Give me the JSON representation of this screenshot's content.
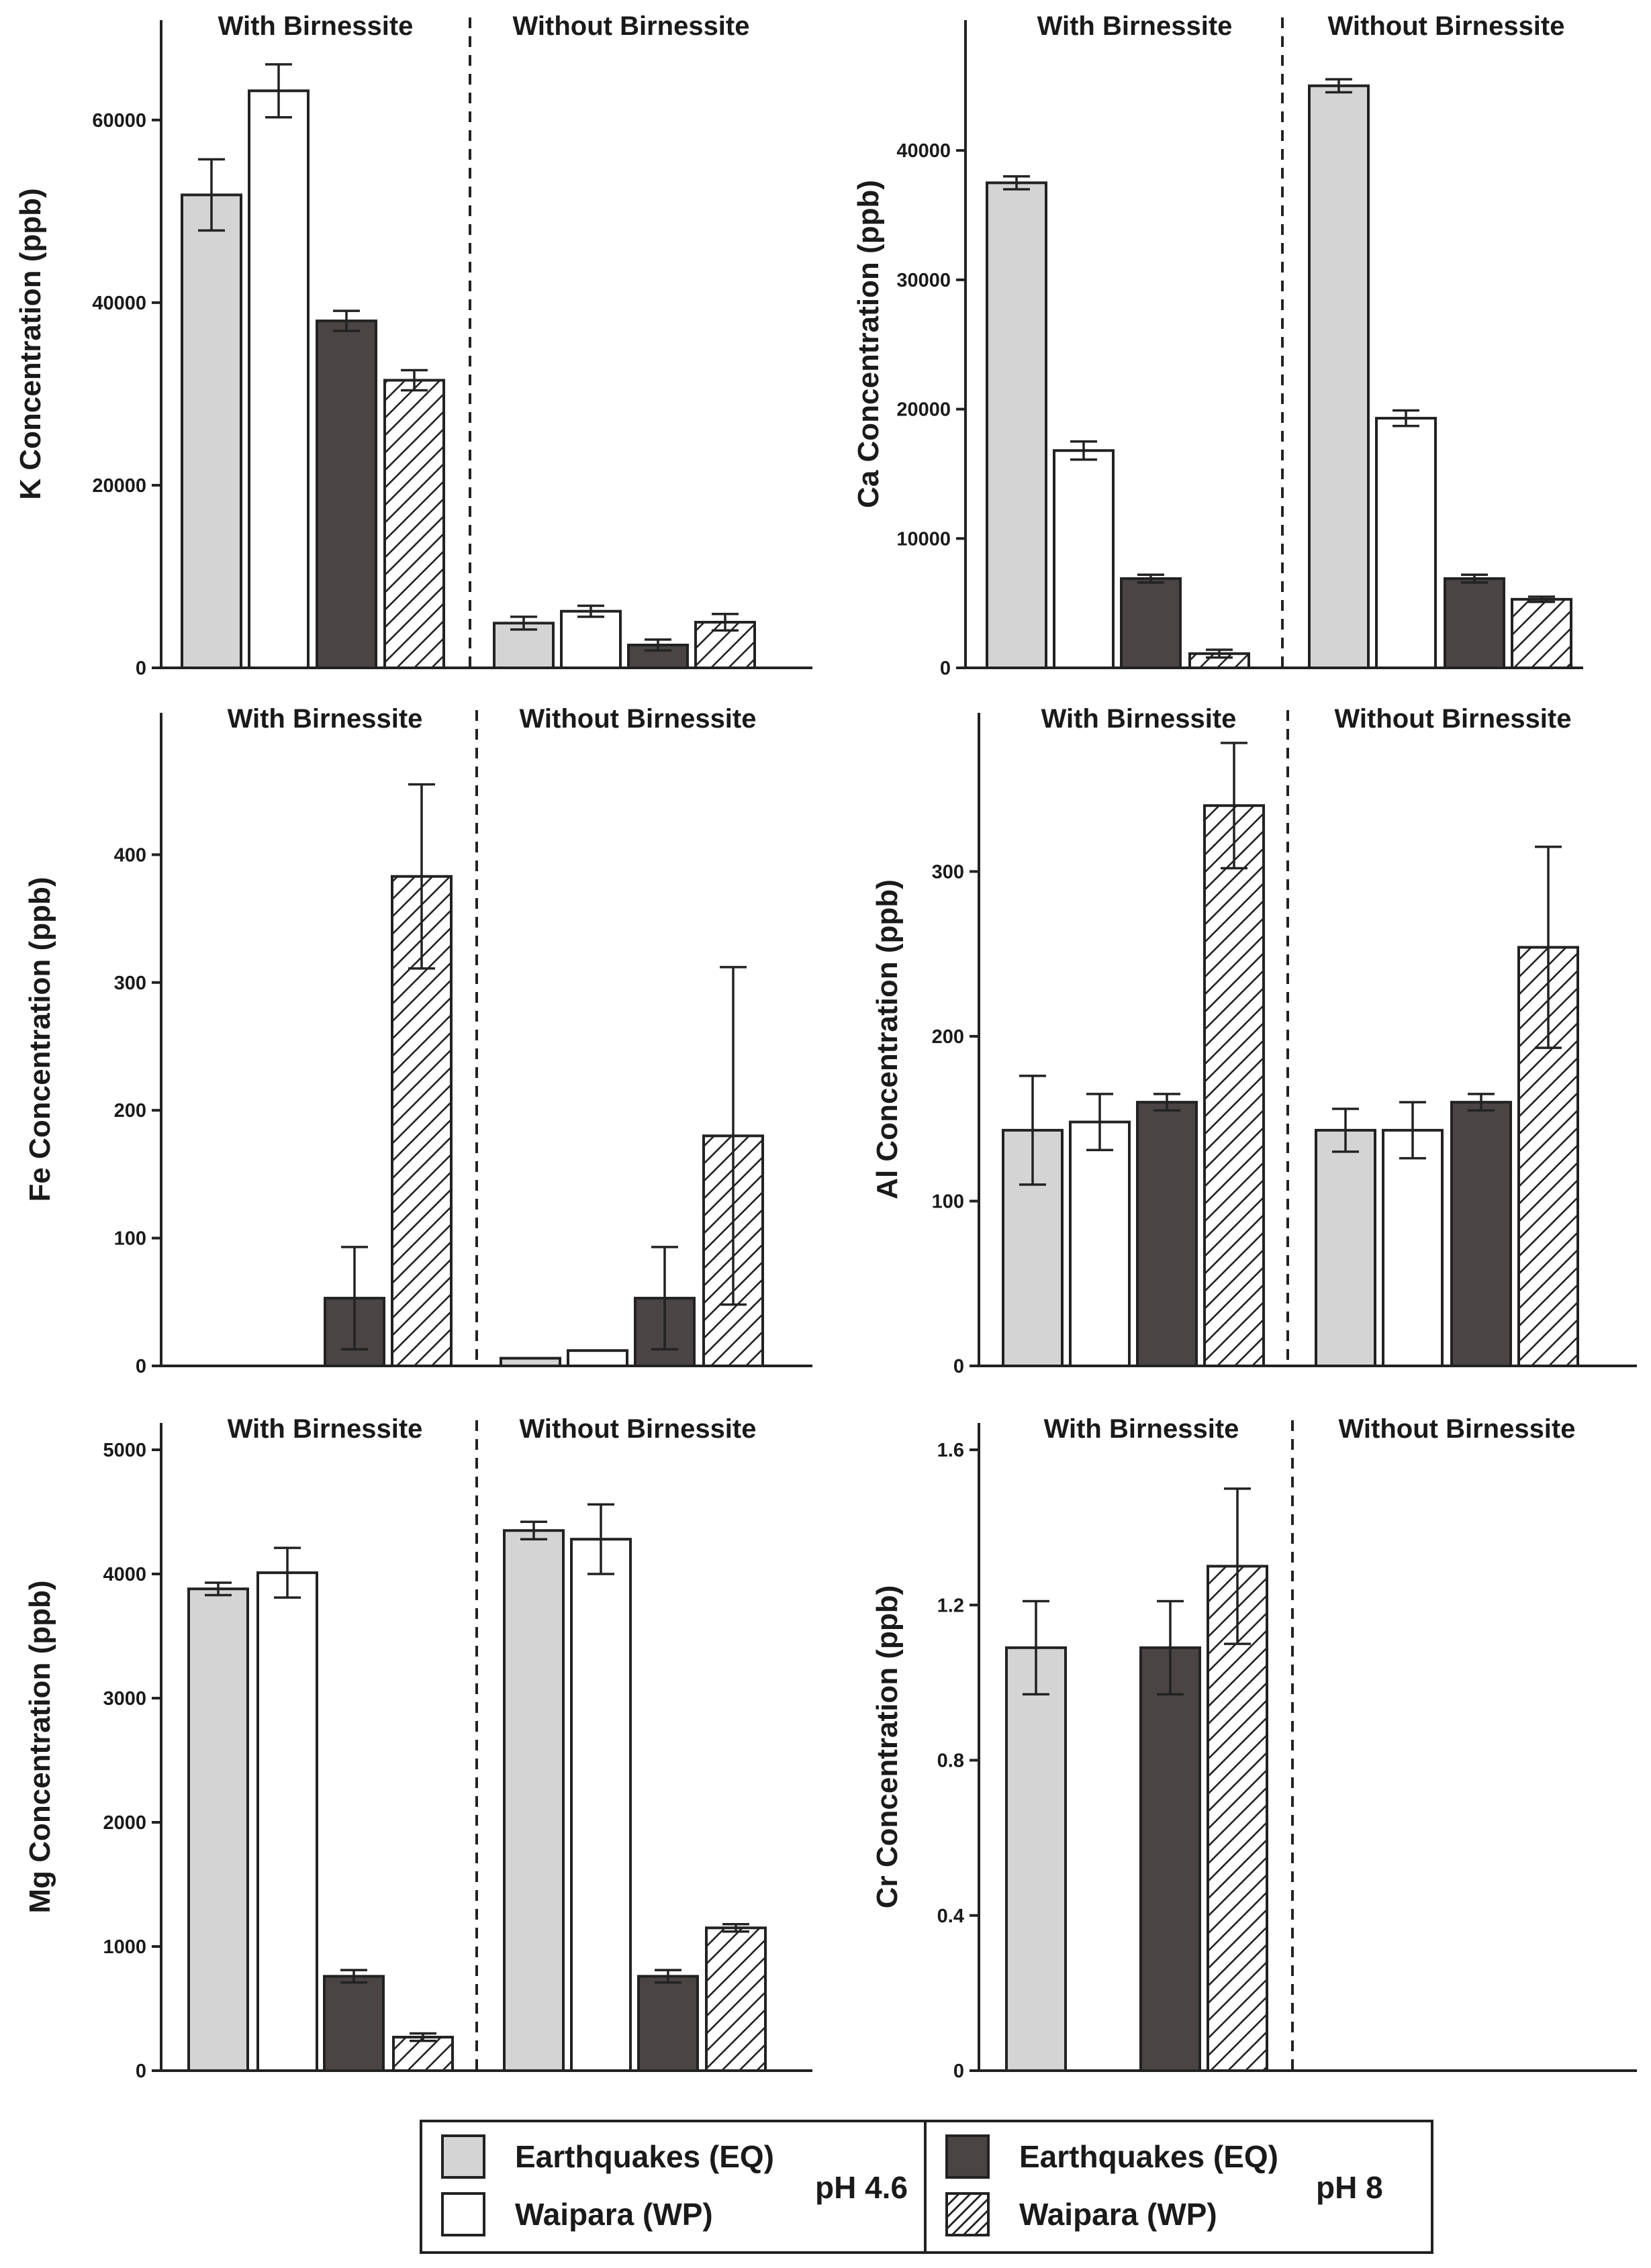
{
  "chart_data": [
    {
      "type": "bar",
      "ylabel": "K Concentration (ppb)",
      "ylim": [
        0,
        68000
      ],
      "yticks": [
        0,
        20000,
        40000,
        60000
      ],
      "groups": [
        "With Birnessite",
        "Without Birnessite"
      ],
      "series": [
        {
          "name": "Earthquakes (EQ) pH 4.6",
          "values": [
            51800,
            4900
          ],
          "errors": [
            3900,
            700
          ]
        },
        {
          "name": "Waipara (WP) pH 4.6",
          "values": [
            63200,
            6200
          ],
          "errors": [
            2900,
            600
          ]
        },
        {
          "name": "Earthquakes (EQ) pH 8",
          "values": [
            38000,
            2500
          ],
          "errors": [
            1100,
            600
          ]
        },
        {
          "name": "Waipara (WP) pH 8",
          "values": [
            31500,
            5000
          ],
          "errors": [
            1100,
            900
          ]
        }
      ]
    },
    {
      "type": "bar",
      "ylabel": "Ca Concentration (ppb)",
      "ylim": [
        0,
        48000
      ],
      "yticks": [
        0,
        10000,
        20000,
        30000,
        40000
      ],
      "groups": [
        "With Birnessite",
        "Without Birnessite"
      ],
      "series": [
        {
          "name": "Earthquakes (EQ) pH 4.6",
          "values": [
            37500,
            45000
          ],
          "errors": [
            500,
            500
          ]
        },
        {
          "name": "Waipara (WP) pH 4.6",
          "values": [
            16800,
            19300
          ],
          "errors": [
            700,
            600
          ]
        },
        {
          "name": "Earthquakes (EQ) pH 8",
          "values": [
            6900,
            6900
          ],
          "errors": [
            300,
            300
          ]
        },
        {
          "name": "Waipara (WP) pH 8",
          "values": [
            1100,
            5300
          ],
          "errors": [
            300,
            200
          ]
        }
      ]
    },
    {
      "type": "bar",
      "ylabel": "Fe Concentration (ppb)",
      "ylim": [
        0,
        490
      ],
      "yticks": [
        0,
        100,
        200,
        300,
        400
      ],
      "groups": [
        "With Birnessite",
        "Without Birnessite"
      ],
      "series": [
        {
          "name": "Earthquakes (EQ) pH 4.6",
          "values": [
            0,
            6
          ],
          "errors": [
            0,
            0
          ]
        },
        {
          "name": "Waipara (WP) pH 4.6",
          "values": [
            0,
            12
          ],
          "errors": [
            0,
            0
          ]
        },
        {
          "name": "Earthquakes (EQ) pH 8",
          "values": [
            53,
            53
          ],
          "errors": [
            40,
            40
          ]
        },
        {
          "name": "Waipara (WP) pH 8",
          "values": [
            383,
            180
          ],
          "errors": [
            72,
            132
          ]
        }
      ]
    },
    {
      "type": "bar",
      "ylabel": "Al Concentration (ppb)",
      "ylim": [
        0,
        380
      ],
      "yticks": [
        0,
        100,
        200,
        300
      ],
      "groups": [
        "With Birnessite",
        "Without Birnessite"
      ],
      "series": [
        {
          "name": "Earthquakes (EQ) pH 4.6",
          "values": [
            143,
            143
          ],
          "errors": [
            33,
            13
          ]
        },
        {
          "name": "Waipara (WP) pH 4.6",
          "values": [
            148,
            143
          ],
          "errors": [
            17,
            17
          ]
        },
        {
          "name": "Earthquakes (EQ) pH 8",
          "values": [
            160,
            160
          ],
          "errors": [
            5,
            5
          ]
        },
        {
          "name": "Waipara (WP) pH 8",
          "values": [
            340,
            254
          ],
          "errors": [
            38,
            61
          ]
        }
      ]
    },
    {
      "type": "bar",
      "ylabel": "Mg Concentration (ppb)",
      "ylim": [
        0,
        5000
      ],
      "yticks": [
        0,
        1000,
        2000,
        3000,
        4000,
        5000
      ],
      "groups": [
        "With Birnessite",
        "Without Birnessite"
      ],
      "series": [
        {
          "name": "Earthquakes (EQ) pH 4.6",
          "values": [
            3880,
            4350
          ],
          "errors": [
            50,
            70
          ]
        },
        {
          "name": "Waipara (WP) pH 4.6",
          "values": [
            4010,
            4280
          ],
          "errors": [
            200,
            280
          ]
        },
        {
          "name": "Earthquakes (EQ) pH 8",
          "values": [
            760,
            760
          ],
          "errors": [
            50,
            50
          ]
        },
        {
          "name": "Waipara (WP) pH 8",
          "values": [
            270,
            1150
          ],
          "errors": [
            30,
            30
          ]
        }
      ]
    },
    {
      "type": "bar",
      "ylabel": "Cr Concentration (ppb)",
      "ylim": [
        0,
        1.6
      ],
      "yticks": [
        0,
        0.4,
        0.8,
        1.2,
        1.6
      ],
      "groups": [
        "With Birnessite",
        "Without Birnessite"
      ],
      "series": [
        {
          "name": "Earthquakes (EQ) pH 4.6",
          "values": [
            1.09,
            0
          ],
          "errors": [
            0.12,
            0
          ]
        },
        {
          "name": "Waipara (WP) pH 4.6",
          "values": [
            0,
            0
          ],
          "errors": [
            0,
            0
          ]
        },
        {
          "name": "Earthquakes (EQ) pH 8",
          "values": [
            1.09,
            0
          ],
          "errors": [
            0.12,
            0
          ]
        },
        {
          "name": "Waipara (WP) pH 8",
          "values": [
            1.3,
            0
          ],
          "errors": [
            0.2,
            0
          ]
        }
      ]
    }
  ],
  "legend": {
    "eq_label": "Earthquakes (EQ)",
    "wp_label": "Waipara (WP)",
    "ph_low": "pH 4.6",
    "ph_high": "pH 8"
  },
  "colors": {
    "eq_ph46": "#d4d4d4",
    "wp_ph46": "#ffffff",
    "eq_ph8": "#4a4445",
    "wp_ph8_hatch": "#222222",
    "outline": "#222222"
  }
}
